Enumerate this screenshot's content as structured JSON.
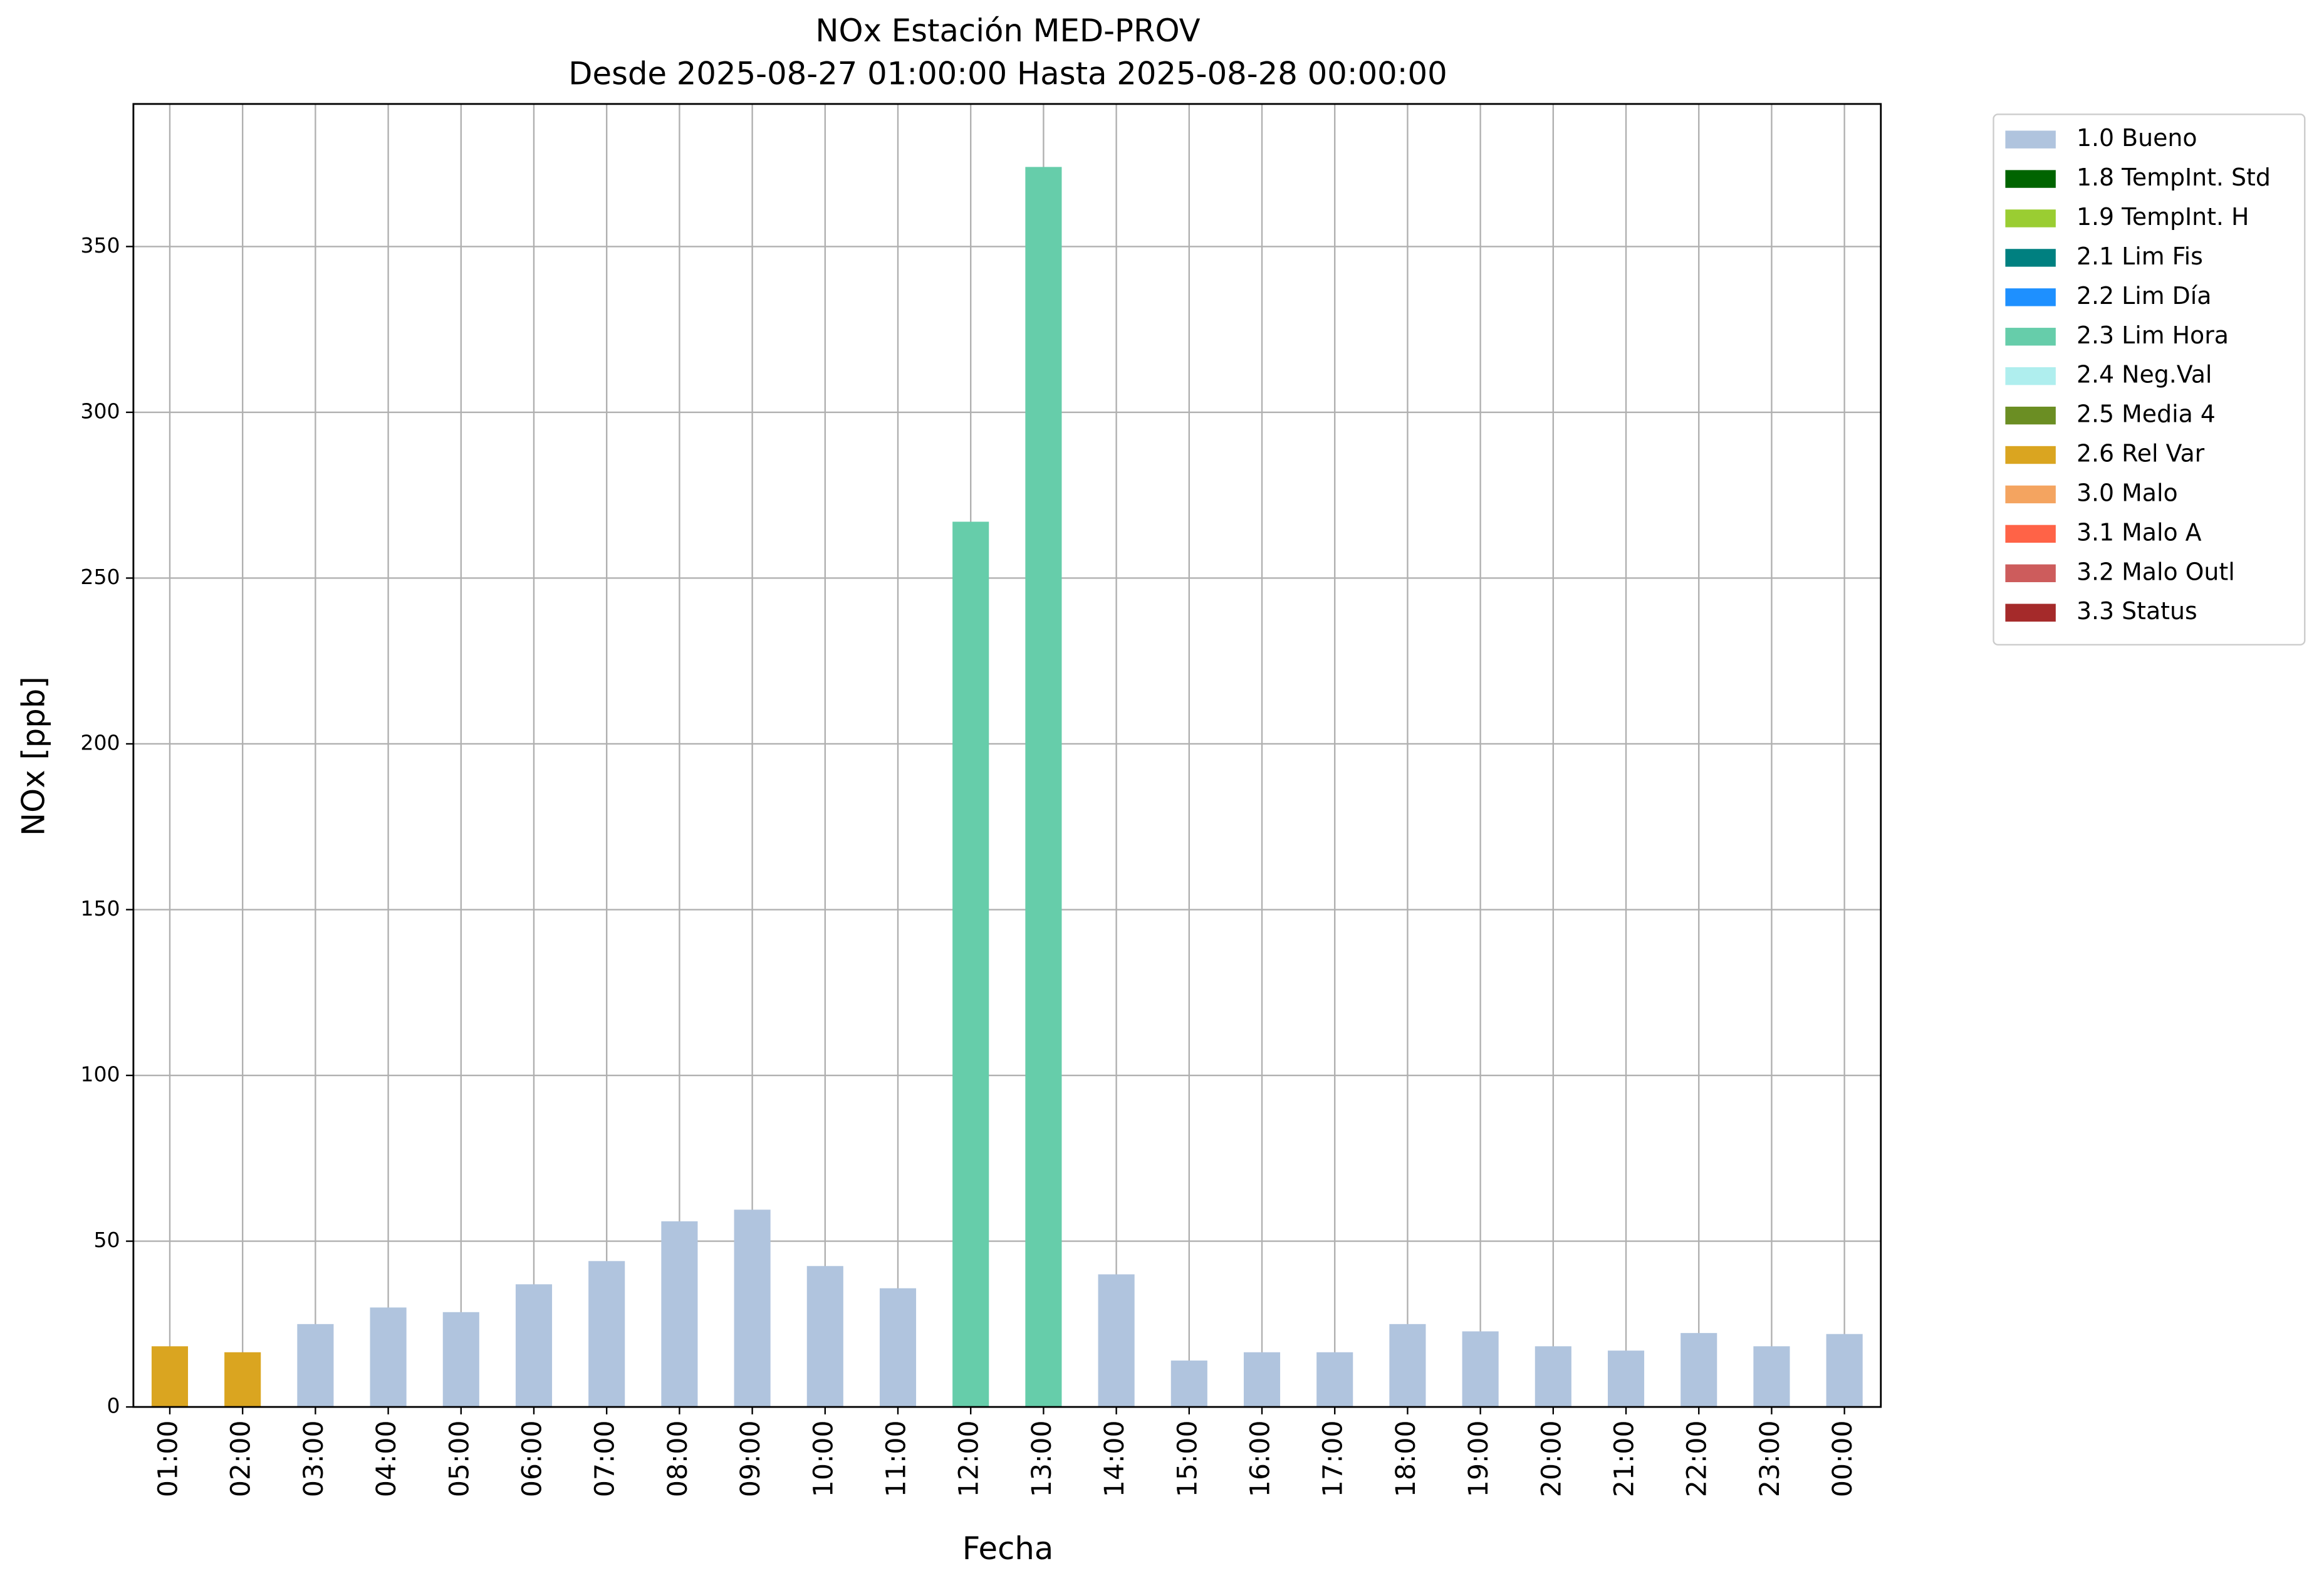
{
  "chart_data": {
    "type": "stacked_bar",
    "title": "NOx Estación MED-PROV",
    "subtitle": "Desde 2025-08-27 01:00:00 Hasta 2025-08-28 00:00:00",
    "x_label": "Fecha",
    "y_label": "NOx [ppb]",
    "categories": [
      "01:00",
      "02:00",
      "03:00",
      "04:00",
      "05:00",
      "06:00",
      "07:00",
      "08:00",
      "09:00",
      "10:00",
      "11:00",
      "12:00",
      "13:00",
      "14:00",
      "15:00",
      "16:00",
      "17:00",
      "18:00",
      "19:00",
      "20:00",
      "21:00",
      "22:00",
      "23:00",
      "00:00"
    ],
    "series": [
      {
        "name": "1.0 Bueno",
        "color": "#b0c4de",
        "values": [
          null,
          null,
          25,
          30,
          28.6,
          37,
          44,
          56,
          59.5,
          42.5,
          35.8,
          null,
          null,
          40,
          14,
          16.5,
          16.5,
          25,
          22.8,
          18.3,
          17,
          22.3,
          18.3,
          22
        ]
      },
      {
        "name": "1.8 TempInt. Std",
        "color": "#006400",
        "values": [
          null,
          null,
          null,
          null,
          null,
          null,
          null,
          null,
          null,
          null,
          null,
          null,
          null,
          null,
          null,
          null,
          null,
          null,
          null,
          null,
          null,
          null,
          null,
          null
        ]
      },
      {
        "name": "1.9 TempInt. H",
        "color": "#9acd32",
        "values": [
          null,
          null,
          null,
          null,
          null,
          null,
          null,
          null,
          null,
          null,
          null,
          null,
          null,
          null,
          null,
          null,
          null,
          null,
          null,
          null,
          null,
          null,
          null,
          null
        ]
      },
      {
        "name": "2.1 Lim Fis",
        "color": "#008080",
        "values": [
          null,
          null,
          null,
          null,
          null,
          null,
          null,
          null,
          null,
          null,
          null,
          null,
          null,
          null,
          null,
          null,
          null,
          null,
          null,
          null,
          null,
          null,
          null,
          null
        ]
      },
      {
        "name": "2.2 Lim Día",
        "color": "#1e90ff",
        "values": [
          null,
          null,
          null,
          null,
          null,
          null,
          null,
          null,
          null,
          null,
          null,
          null,
          null,
          null,
          null,
          null,
          null,
          null,
          null,
          null,
          null,
          null,
          null,
          null
        ]
      },
      {
        "name": "2.3 Lim Hora",
        "color": "#66cdaa",
        "values": [
          null,
          null,
          null,
          null,
          null,
          null,
          null,
          null,
          null,
          null,
          null,
          267,
          374,
          null,
          null,
          null,
          null,
          null,
          null,
          null,
          null,
          null,
          null,
          null
        ]
      },
      {
        "name": "2.4 Neg.Val",
        "color": "#afeeee",
        "values": [
          null,
          null,
          null,
          null,
          null,
          null,
          null,
          null,
          null,
          null,
          null,
          null,
          null,
          null,
          null,
          null,
          null,
          null,
          null,
          null,
          null,
          null,
          null,
          null
        ]
      },
      {
        "name": "2.5 Media 4",
        "color": "#6b8e23",
        "values": [
          null,
          null,
          null,
          null,
          null,
          null,
          null,
          null,
          null,
          null,
          null,
          null,
          null,
          null,
          null,
          null,
          null,
          null,
          null,
          null,
          null,
          null,
          null,
          null
        ]
      },
      {
        "name": "2.6 Rel Var",
        "color": "#daa520",
        "values": [
          18.3,
          16.5,
          null,
          null,
          null,
          null,
          null,
          null,
          null,
          null,
          null,
          null,
          null,
          null,
          null,
          null,
          null,
          null,
          null,
          null,
          null,
          null,
          null,
          null
        ]
      },
      {
        "name": "3.0 Malo",
        "color": "#f4a460",
        "values": [
          null,
          null,
          null,
          null,
          null,
          null,
          null,
          null,
          null,
          null,
          null,
          null,
          null,
          null,
          null,
          null,
          null,
          null,
          null,
          null,
          null,
          null,
          null,
          null
        ]
      },
      {
        "name": "3.1 Malo A",
        "color": "#ff6347",
        "values": [
          null,
          null,
          null,
          null,
          null,
          null,
          null,
          null,
          null,
          null,
          null,
          null,
          null,
          null,
          null,
          null,
          null,
          null,
          null,
          null,
          null,
          null,
          null,
          null
        ]
      },
      {
        "name": "3.2 Malo Outl",
        "color": "#cd5c5c",
        "values": [
          null,
          null,
          null,
          null,
          null,
          null,
          null,
          null,
          null,
          null,
          null,
          null,
          null,
          null,
          null,
          null,
          null,
          null,
          null,
          null,
          null,
          null,
          null,
          null
        ]
      },
      {
        "name": "3.3 Status",
        "color": "#a52a2a",
        "values": [
          null,
          null,
          null,
          null,
          null,
          null,
          null,
          null,
          null,
          null,
          null,
          null,
          null,
          null,
          null,
          null,
          null,
          null,
          null,
          null,
          null,
          null,
          null,
          null
        ]
      }
    ],
    "ylim": [
      0,
      393
    ],
    "yticks": [
      0,
      50,
      100,
      150,
      200,
      250,
      300,
      350
    ],
    "grid": true,
    "legend": "outside-upper-right"
  }
}
